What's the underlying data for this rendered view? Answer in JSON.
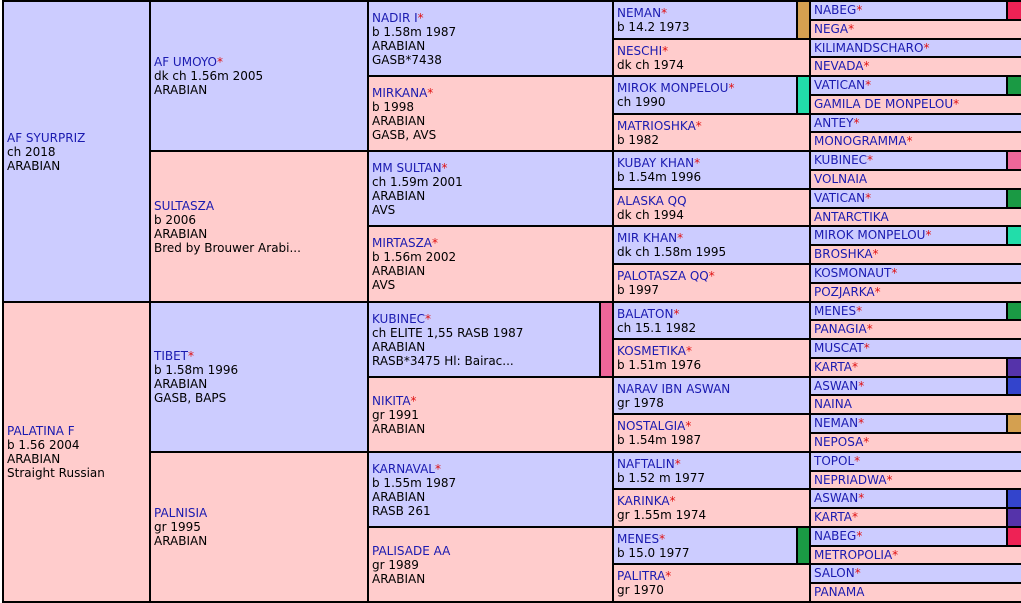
{
  "generations": {
    "g1": [
      {
        "name": "AF SYURPRIZ",
        "star": false,
        "lines": [
          "ch 2018",
          "ARABIAN"
        ],
        "sex": "m"
      },
      {
        "name": "PALATINA F",
        "star": false,
        "lines": [
          "b 1.56 2004",
          "ARABIAN",
          "Straight Russian"
        ],
        "sex": "f"
      }
    ],
    "g2": [
      {
        "name": "AF UMOYO",
        "star": true,
        "lines": [
          "dk ch 1.56m 2005",
          "ARABIAN"
        ],
        "sex": "m"
      },
      {
        "name": "SULTASZA",
        "star": false,
        "lines": [
          "b 2006",
          "ARABIAN",
          "Bred by Brouwer Arabi..."
        ],
        "sex": "f"
      },
      {
        "name": "TIBET",
        "star": true,
        "lines": [
          "b 1.58m 1996",
          "ARABIAN",
          "GASB, BAPS"
        ],
        "sex": "m"
      },
      {
        "name": "PALNISIA",
        "star": false,
        "lines": [
          "gr 1995",
          "ARABIAN"
        ],
        "sex": "f"
      }
    ],
    "g3": [
      {
        "name": "NADIR I",
        "star": true,
        "lines": [
          "b 1.58m 1987",
          "ARABIAN",
          "GASB*7438"
        ],
        "sex": "m"
      },
      {
        "name": "MIRKANA",
        "star": true,
        "lines": [
          "b 1998",
          "ARABIAN",
          "GASB, AVS"
        ],
        "sex": "f"
      },
      {
        "name": "MM SULTAN",
        "star": true,
        "lines": [
          "ch 1.59m 2001",
          "ARABIAN",
          "AVS"
        ],
        "sex": "m"
      },
      {
        "name": "MIRTASZA",
        "star": true,
        "lines": [
          "b 1.56m 2002",
          "ARABIAN",
          "AVS"
        ],
        "sex": "f"
      },
      {
        "name": "KUBINEC",
        "star": true,
        "lines": [
          "ch ELITE 1,55 RASB 1987",
          "ARABIAN",
          "RASB*3475 Hl: Bairac..."
        ],
        "sex": "m",
        "strip": "#ee6699"
      },
      {
        "name": "NIKITA",
        "star": true,
        "lines": [
          "gr 1991",
          "ARABIAN"
        ],
        "sex": "f"
      },
      {
        "name": "KARNAVAL",
        "star": true,
        "lines": [
          "b 1.55m 1987",
          "ARABIAN",
          "RASB 261"
        ],
        "sex": "m"
      },
      {
        "name": "PALISADE AA",
        "star": false,
        "lines": [
          "gr 1989",
          "ARABIAN"
        ],
        "sex": "f"
      }
    ],
    "g4": [
      {
        "name": "NEMAN",
        "star": true,
        "lines": [
          "b 14.2 1973"
        ],
        "sex": "m",
        "strip": "#d4a050"
      },
      {
        "name": "NESCHI",
        "star": true,
        "lines": [
          "dk ch 1974"
        ],
        "sex": "f"
      },
      {
        "name": "MIROK MONPELOU",
        "star": true,
        "lines": [
          "ch 1990"
        ],
        "sex": "m",
        "strip": "#22ddaa"
      },
      {
        "name": "MATRIOSHKA",
        "star": true,
        "lines": [
          "b 1982"
        ],
        "sex": "f"
      },
      {
        "name": "KUBAY KHAN",
        "star": true,
        "lines": [
          "b 1.54m 1996"
        ],
        "sex": "m"
      },
      {
        "name": "ALASKA QQ",
        "star": false,
        "lines": [
          "dk ch 1994"
        ],
        "sex": "f"
      },
      {
        "name": "MIR KHAN",
        "star": true,
        "lines": [
          "dk ch 1.58m 1995"
        ],
        "sex": "m"
      },
      {
        "name": "PALOTASZA QQ",
        "star": true,
        "lines": [
          "b 1997"
        ],
        "sex": "f"
      },
      {
        "name": "BALATON",
        "star": true,
        "lines": [
          "ch 15.1 1982"
        ],
        "sex": "m"
      },
      {
        "name": "KOSMETIKA",
        "star": true,
        "lines": [
          "b 1.51m 1976"
        ],
        "sex": "f"
      },
      {
        "name": "NARAV IBN ASWAN",
        "star": false,
        "lines": [
          "gr 1978"
        ],
        "sex": "m"
      },
      {
        "name": "NOSTALGIA",
        "star": true,
        "lines": [
          "b 1.54m 1987"
        ],
        "sex": "f"
      },
      {
        "name": "NAFTALIN",
        "star": true,
        "lines": [
          "b 1.52 m 1977"
        ],
        "sex": "m"
      },
      {
        "name": "KARINKA",
        "star": true,
        "lines": [
          "gr 1.55m 1974"
        ],
        "sex": "f"
      },
      {
        "name": "MENES",
        "star": true,
        "lines": [
          "b 15.0 1977"
        ],
        "sex": "m",
        "strip": "#1a9a44"
      },
      {
        "name": "PALITRA",
        "star": true,
        "lines": [
          "gr 1970"
        ],
        "sex": "f"
      }
    ],
    "g5": [
      {
        "name": "NABEG",
        "star": true,
        "sex": "m",
        "strip": "#ee2255"
      },
      {
        "name": "NEGA",
        "star": true,
        "sex": "f"
      },
      {
        "name": "KILIMANDSCHARO",
        "star": true,
        "sex": "m"
      },
      {
        "name": "NEVADA",
        "star": true,
        "sex": "f"
      },
      {
        "name": "VATICAN",
        "star": true,
        "sex": "m",
        "strip": "#1a9a44"
      },
      {
        "name": "GAMILA DE MONPELOU",
        "star": true,
        "sex": "f"
      },
      {
        "name": "ANTEY",
        "star": true,
        "sex": "m"
      },
      {
        "name": "MONOGRAMMA",
        "star": true,
        "sex": "f"
      },
      {
        "name": "KUBINEC",
        "star": true,
        "sex": "m",
        "strip": "#ee6699"
      },
      {
        "name": "VOLNAIA",
        "star": false,
        "sex": "f"
      },
      {
        "name": "VATICAN",
        "star": true,
        "sex": "m",
        "strip": "#1a9a44"
      },
      {
        "name": "ANTARCTIKA",
        "star": false,
        "sex": "f"
      },
      {
        "name": "MIROK MONPELOU",
        "star": true,
        "sex": "m",
        "strip": "#22ddaa"
      },
      {
        "name": "BROSHKA",
        "star": true,
        "sex": "f"
      },
      {
        "name": "KOSMONAUT",
        "star": true,
        "sex": "m"
      },
      {
        "name": "POZJARKA",
        "star": true,
        "sex": "f"
      },
      {
        "name": "MENES",
        "star": true,
        "sex": "m",
        "strip": "#1a9a44"
      },
      {
        "name": "PANAGIA",
        "star": true,
        "sex": "f"
      },
      {
        "name": "MUSCAT",
        "star": true,
        "sex": "m"
      },
      {
        "name": "KARTA",
        "star": true,
        "sex": "f",
        "strip": "#5533aa"
      },
      {
        "name": "ASWAN",
        "star": true,
        "sex": "m",
        "strip": "#3344cc"
      },
      {
        "name": "NAINA",
        "star": false,
        "sex": "f"
      },
      {
        "name": "NEMAN",
        "star": true,
        "sex": "m",
        "strip": "#d4a050"
      },
      {
        "name": "NEPOSA",
        "star": true,
        "sex": "f"
      },
      {
        "name": "TOPOL",
        "star": true,
        "sex": "m"
      },
      {
        "name": "NEPRIADWA",
        "star": true,
        "sex": "f"
      },
      {
        "name": "ASWAN",
        "star": true,
        "sex": "m",
        "strip": "#3344cc"
      },
      {
        "name": "KARTA",
        "star": true,
        "sex": "f",
        "strip": "#5533aa"
      },
      {
        "name": "NABEG",
        "star": true,
        "sex": "m",
        "strip": "#ee2255"
      },
      {
        "name": "METROPOLIA",
        "star": true,
        "sex": "f"
      },
      {
        "name": "SALON",
        "star": true,
        "sex": "m"
      },
      {
        "name": "PANAMA",
        "star": false,
        "sex": "f"
      }
    ]
  },
  "colors": {
    "sire_bg": "#ccccff",
    "dam_bg": "#ffcccc",
    "name_link": "#1a1ab0",
    "asterisk": "#e01010"
  },
  "star_symbol": "*"
}
